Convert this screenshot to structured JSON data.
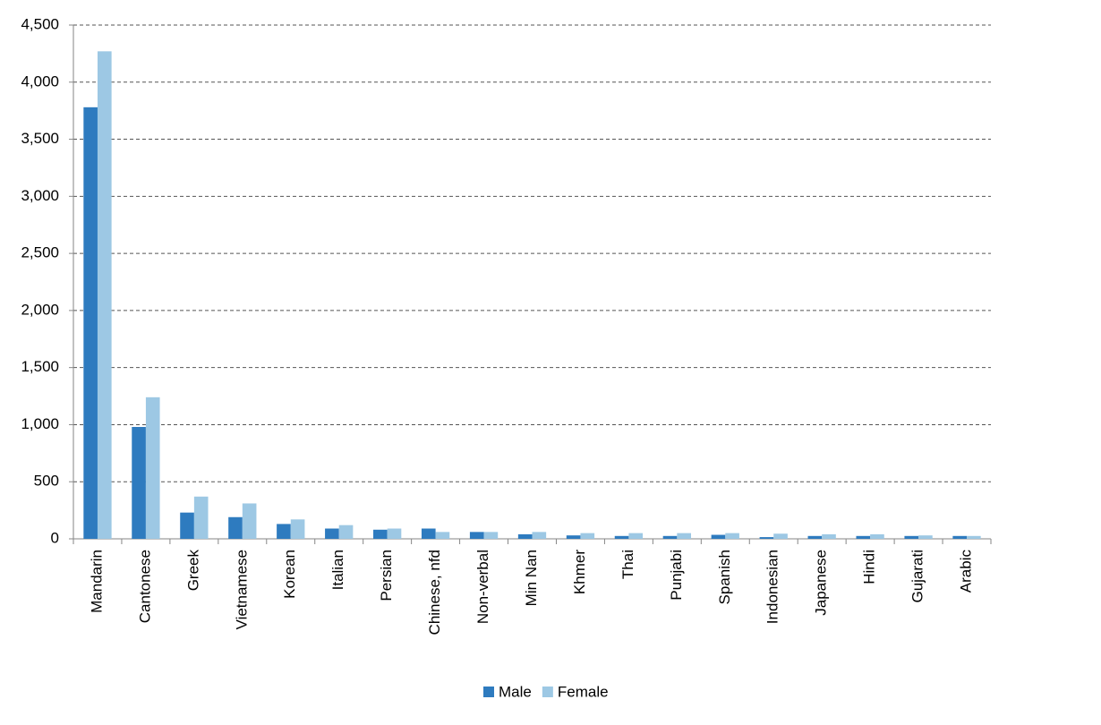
{
  "chart_data": {
    "type": "bar",
    "categories": [
      "Mandarin",
      "Cantonese",
      "Greek",
      "Vietnamese",
      "Korean",
      "Italian",
      "Persian",
      "Chinese, nfd",
      "Non-verbal",
      "Min Nan",
      "Khmer",
      "Thai",
      "Punjabi",
      "Spanish",
      "Indonesian",
      "Japanese",
      "Hindi",
      "Gujarati",
      "Arabic"
    ],
    "series": [
      {
        "name": "Male",
        "color": "#2e7bbf",
        "values": [
          3780,
          980,
          230,
          190,
          130,
          90,
          80,
          90,
          60,
          40,
          30,
          25,
          25,
          35,
          15,
          25,
          25,
          25,
          25
        ]
      },
      {
        "name": "Female",
        "color": "#9dc8e4",
        "values": [
          4270,
          1240,
          370,
          310,
          170,
          120,
          90,
          60,
          60,
          60,
          50,
          50,
          50,
          50,
          45,
          40,
          40,
          30,
          25
        ]
      }
    ],
    "ylim": [
      0,
      4500
    ],
    "yticks": [
      0,
      500,
      {
        "value": 1000,
        "label": "1,000"
      },
      {
        "value": 1500,
        "label": "1,500"
      },
      {
        "value": 2000,
        "label": "2,000"
      },
      {
        "value": 2500,
        "label": "2,500"
      },
      {
        "value": 3000,
        "label": "3,000"
      },
      {
        "value": 3500,
        "label": "3,500"
      },
      {
        "value": 4000,
        "label": "4,000"
      },
      {
        "value": 4500,
        "label": "4,500"
      }
    ],
    "grid": true,
    "legend": "bottom"
  }
}
